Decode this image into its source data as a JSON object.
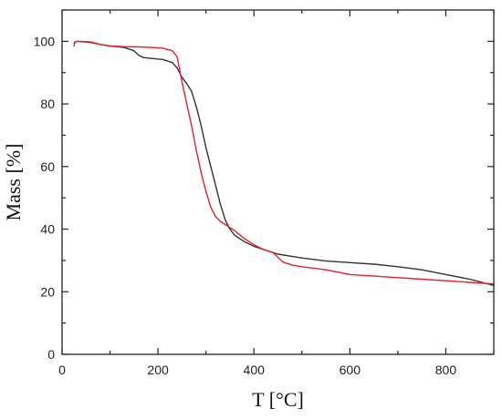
{
  "chart_data": {
    "type": "line",
    "xlabel": "T [°C]",
    "ylabel": "Mass [%]",
    "xlim": [
      0,
      900
    ],
    "ylim": [
      0,
      110
    ],
    "x_ticks": [
      "0",
      "200",
      "400",
      "600",
      "800"
    ],
    "y_ticks": [
      "0",
      "20",
      "40",
      "60",
      "80",
      "100"
    ],
    "grid": false,
    "legend": "none",
    "series": [
      {
        "color": "#333333",
        "x": [
          25,
          30,
          40,
          60,
          80,
          100,
          130,
          150,
          160,
          170,
          190,
          210,
          230,
          240,
          250,
          260,
          270,
          280,
          290,
          300,
          310,
          320,
          330,
          340,
          350,
          360,
          380,
          400,
          430,
          450,
          500,
          550,
          600,
          650,
          700,
          750,
          800,
          850,
          900
        ],
        "y": [
          99.5,
          100,
          99.9,
          99.6,
          99,
          98.5,
          98,
          97,
          95.5,
          94.8,
          94.5,
          94.2,
          93.2,
          91.5,
          88.5,
          86.5,
          84,
          79,
          73,
          66,
          60,
          54,
          48,
          43,
          40,
          38,
          36,
          34.5,
          33,
          32,
          30.8,
          29.8,
          29.3,
          28.8,
          28,
          27,
          25.5,
          24,
          22
        ]
      },
      {
        "color": "#e8202a",
        "x": [
          25,
          27,
          30,
          40,
          60,
          80,
          100,
          130,
          160,
          190,
          210,
          230,
          240,
          245,
          250,
          260,
          270,
          280,
          290,
          300,
          310,
          320,
          330,
          340,
          350,
          360,
          380,
          400,
          420,
          440,
          450,
          460,
          480,
          500,
          550,
          600,
          650,
          700,
          750,
          800,
          850,
          900
        ],
        "y": [
          98.5,
          99.8,
          100,
          100,
          99.8,
          99,
          98.5,
          98.3,
          98.2,
          98,
          97.8,
          97,
          95,
          91,
          87,
          80,
          73,
          65,
          58,
          52,
          47,
          44,
          42.5,
          41.5,
          40.5,
          39.5,
          37,
          35,
          33.5,
          32.5,
          31,
          29.5,
          28.5,
          28,
          27,
          25.5,
          25,
          24.5,
          24,
          23.5,
          23,
          22.5
        ]
      }
    ]
  }
}
